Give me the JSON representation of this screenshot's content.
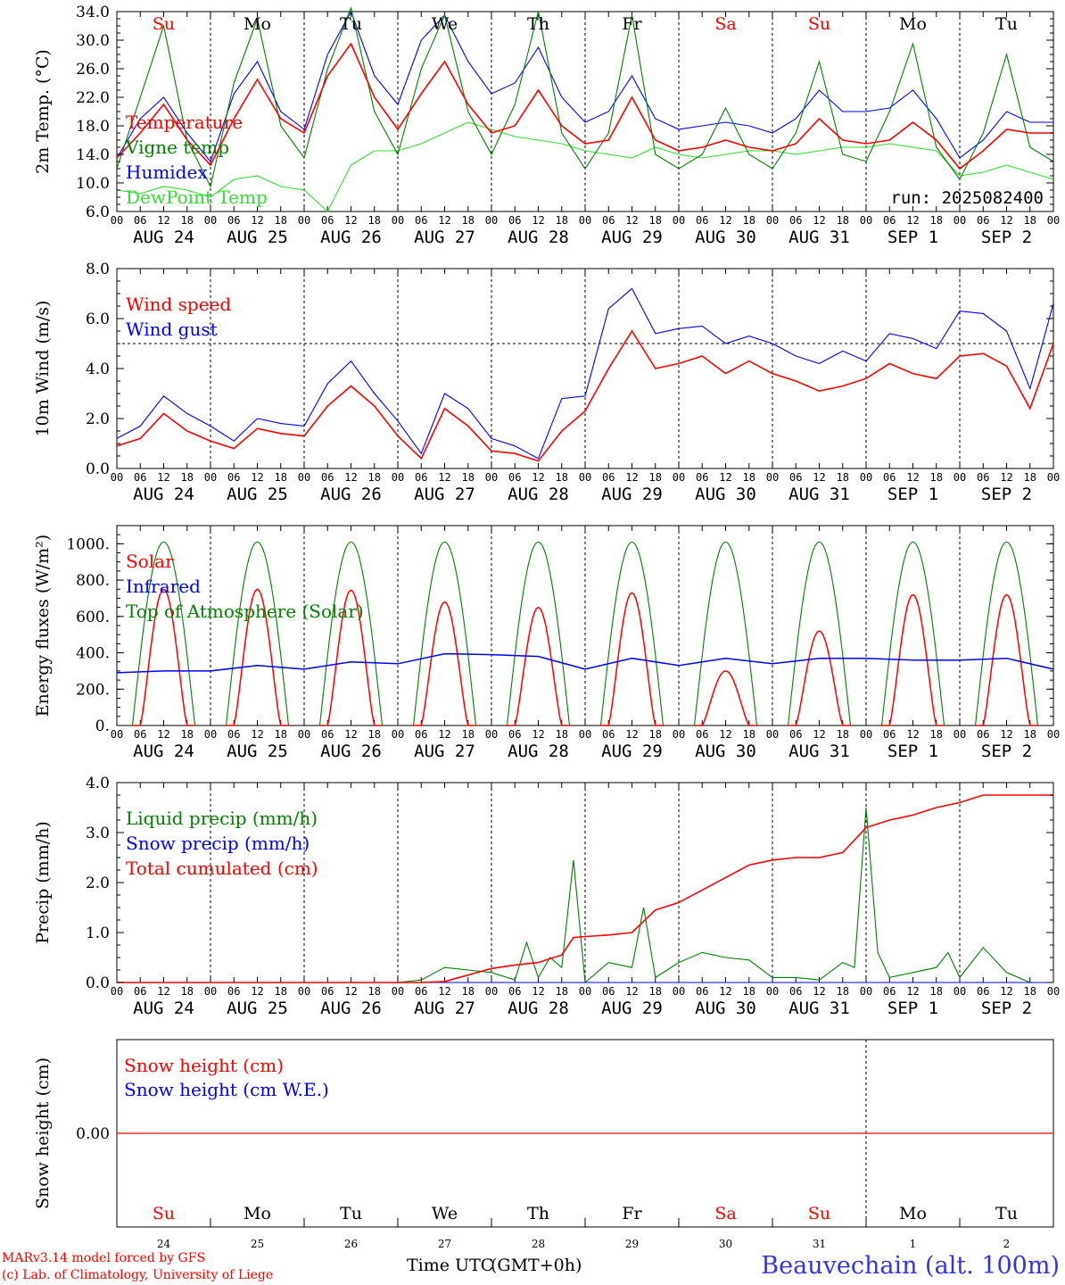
{
  "footer": {
    "credit_line1": "MARv3.14 model forced by GFS",
    "credit_line2": "(c) Lab. of Climatology, University of Liege",
    "time_label_a": "Time UTC",
    "time_label_b": "(GMT+0h)",
    "station": "Beauvechain (alt. 100m)"
  },
  "days": {
    "weekday": [
      "Su",
      "Mo",
      "Tu",
      "We",
      "Th",
      "Fr",
      "Sa",
      "Su",
      "Mo",
      "Tu"
    ],
    "weekend_flags": [
      true,
      false,
      false,
      false,
      false,
      false,
      true,
      true,
      false,
      false
    ],
    "date_labels": [
      "AUG 24",
      "AUG 25",
      "AUG 26",
      "AUG 27",
      "AUG 28",
      "AUG 29",
      "AUG 30",
      "AUG 31",
      "SEP  1",
      "SEP  2"
    ],
    "day_numbers": [
      "24",
      "25",
      "26",
      "27",
      "28",
      "29",
      "30",
      "31",
      "1",
      "2"
    ],
    "hour_ticks": [
      "00",
      "06",
      "12",
      "18"
    ],
    "final_tick": "00"
  },
  "colors": {
    "red": "#ff0000",
    "green": "#008000",
    "blue": "#0000ff",
    "lightgreen": "#33dd33",
    "weekend": "#ff0000",
    "weekday": "#000000"
  },
  "chart_data": [
    {
      "type": "line",
      "ylabel": "2m Temp. (°C)",
      "ylim": [
        6,
        34
      ],
      "yticks": [
        "6.0",
        "10.0",
        "14.0",
        "18.0",
        "22.0",
        "26.0",
        "30.0",
        "34.0"
      ],
      "run_label": "run: 2025082400",
      "x_unit": "hours since 2025-08-24 00 UTC",
      "series": [
        {
          "name": "Temperature",
          "color": "#ff0000",
          "x": [
            0,
            6,
            12,
            18,
            24,
            30,
            36,
            42,
            48,
            54,
            60,
            66,
            72,
            78,
            84,
            90,
            96,
            102,
            108,
            114,
            120,
            126,
            132,
            138,
            144,
            150,
            156,
            162,
            168,
            174,
            180,
            186,
            192,
            198,
            204,
            210,
            216,
            222,
            228,
            234,
            240
          ],
          "values": [
            13.5,
            17,
            21,
            16,
            12.5,
            19,
            24.5,
            19,
            17,
            25,
            29.5,
            22,
            17.5,
            22.5,
            27,
            21,
            17,
            18,
            23,
            18,
            15.5,
            16,
            22,
            16,
            14.5,
            15,
            16,
            15,
            14.5,
            15.5,
            19,
            16,
            15.5,
            16,
            18.5,
            16,
            12,
            14.5,
            17.5,
            17,
            17
          ]
        },
        {
          "name": "Vigne temp",
          "color": "#008000",
          "x": [
            0,
            6,
            12,
            18,
            24,
            30,
            36,
            42,
            48,
            54,
            60,
            66,
            72,
            78,
            84,
            90,
            96,
            102,
            108,
            114,
            120,
            126,
            132,
            138,
            144,
            150,
            156,
            162,
            168,
            174,
            180,
            186,
            192,
            198,
            204,
            210,
            216,
            222,
            228,
            234,
            240
          ],
          "values": [
            12,
            22,
            32,
            16,
            9.5,
            24,
            33,
            18,
            13.5,
            26,
            34.5,
            20,
            14,
            26,
            33.5,
            20,
            14,
            21,
            34,
            17,
            12,
            17,
            33.5,
            14,
            12,
            14,
            20.5,
            14,
            12,
            17,
            27,
            14,
            13,
            20,
            29.5,
            15,
            10.5,
            17,
            28,
            15,
            13
          ]
        },
        {
          "name": "Humidex",
          "color": "#0000ff",
          "x": [
            0,
            6,
            12,
            18,
            24,
            30,
            36,
            42,
            48,
            54,
            60,
            66,
            72,
            78,
            84,
            90,
            96,
            102,
            108,
            114,
            120,
            126,
            132,
            138,
            144,
            150,
            156,
            162,
            168,
            174,
            180,
            186,
            192,
            198,
            204,
            210,
            216,
            222,
            228,
            234,
            240
          ],
          "values": [
            13.5,
            19,
            22,
            17,
            13,
            22.5,
            27,
            20,
            17.5,
            28,
            34,
            25,
            21,
            30,
            33.5,
            27,
            22.5,
            24,
            29,
            22,
            18.5,
            20,
            25,
            19,
            17.5,
            18,
            18.5,
            18,
            17,
            19,
            23,
            20,
            20,
            20.5,
            23,
            19,
            13.5,
            16,
            20,
            18.5,
            18.5
          ]
        },
        {
          "name": "DewPoint Temp",
          "color": "#33dd33",
          "x": [
            0,
            6,
            12,
            18,
            24,
            30,
            36,
            42,
            48,
            54,
            60,
            66,
            72,
            78,
            84,
            90,
            96,
            102,
            108,
            114,
            120,
            126,
            132,
            138,
            144,
            150,
            156,
            162,
            168,
            174,
            180,
            186,
            192,
            198,
            204,
            210,
            216,
            222,
            228,
            234,
            240
          ],
          "values": [
            9,
            8.5,
            9.5,
            9,
            8,
            10.5,
            11,
            9.5,
            9,
            6,
            12.5,
            14.5,
            14.5,
            15.5,
            17,
            18.5,
            17.5,
            16.5,
            16,
            15.5,
            14.5,
            14,
            13.5,
            15,
            14,
            13.5,
            14,
            14.5,
            14.5,
            14,
            14.5,
            15,
            15,
            15.5,
            15,
            14.5,
            11,
            11.5,
            12.5,
            11.5,
            10.5
          ]
        }
      ]
    },
    {
      "type": "line",
      "ylabel": "10m Wind (m/s)",
      "ylim": [
        0,
        8
      ],
      "yticks": [
        "0.0",
        "2.0",
        "4.0",
        "6.0",
        "8.0"
      ],
      "reference_line": 5,
      "x_unit": "hours since 2025-08-24 00 UTC",
      "series": [
        {
          "name": "Wind speed",
          "color": "#ff0000",
          "x": [
            0,
            6,
            12,
            18,
            24,
            30,
            36,
            42,
            48,
            54,
            60,
            66,
            72,
            78,
            84,
            90,
            96,
            102,
            108,
            114,
            120,
            126,
            132,
            138,
            144,
            150,
            156,
            162,
            168,
            174,
            180,
            186,
            192,
            198,
            204,
            210,
            216,
            222,
            228,
            234,
            240
          ],
          "values": [
            0.9,
            1.2,
            2.2,
            1.5,
            1.1,
            0.8,
            1.6,
            1.4,
            1.3,
            2.5,
            3.3,
            2.5,
            1.3,
            0.4,
            2.4,
            1.7,
            0.7,
            0.6,
            0.3,
            1.5,
            2.3,
            4.0,
            5.5,
            4.0,
            4.2,
            4.5,
            3.8,
            4.3,
            3.8,
            3.5,
            3.1,
            3.3,
            3.6,
            4.2,
            3.8,
            3.6,
            4.5,
            4.6,
            4.1,
            2.4,
            5.0
          ]
        },
        {
          "name": "Wind gust",
          "color": "#0000ff",
          "x": [
            0,
            6,
            12,
            18,
            24,
            30,
            36,
            42,
            48,
            54,
            60,
            66,
            72,
            78,
            84,
            90,
            96,
            102,
            108,
            114,
            120,
            126,
            132,
            138,
            144,
            150,
            156,
            162,
            168,
            174,
            180,
            186,
            192,
            198,
            204,
            210,
            216,
            222,
            228,
            234,
            240
          ],
          "values": [
            1.2,
            1.7,
            2.9,
            2.2,
            1.7,
            1.1,
            2.0,
            1.8,
            1.7,
            3.4,
            4.3,
            3.0,
            1.9,
            0.6,
            3.0,
            2.4,
            1.2,
            0.9,
            0.4,
            2.8,
            2.9,
            6.4,
            7.2,
            5.4,
            5.6,
            5.7,
            5.0,
            5.3,
            5.0,
            4.5,
            4.2,
            4.7,
            4.3,
            5.4,
            5.2,
            4.8,
            6.3,
            6.2,
            5.5,
            3.2,
            6.6
          ]
        }
      ]
    },
    {
      "type": "line",
      "ylabel": "Energy fluxes (W/m²)",
      "ylim": [
        0,
        1100
      ],
      "yticks": [
        "0.",
        "200.",
        "400.",
        "600.",
        "800.",
        "1000."
      ],
      "x_unit": "hours since 2025-08-24 00 UTC",
      "toa_peak": 1010,
      "series": [
        {
          "name": "Solar",
          "color": "#ff0000",
          "peaks": [
            750,
            750,
            745,
            680,
            650,
            730,
            300,
            520,
            720,
            720
          ]
        },
        {
          "name": "Infrared",
          "color": "#0000ff",
          "x": [
            0,
            12,
            24,
            36,
            48,
            60,
            72,
            84,
            96,
            108,
            120,
            132,
            144,
            156,
            168,
            180,
            192,
            204,
            216,
            228,
            240
          ],
          "values": [
            290,
            300,
            300,
            330,
            310,
            350,
            340,
            395,
            390,
            380,
            310,
            370,
            330,
            370,
            340,
            370,
            370,
            360,
            360,
            370,
            310
          ]
        },
        {
          "name": "Top of Atmosphere (Solar)",
          "color": "#008000"
        }
      ]
    },
    {
      "type": "line",
      "ylabel": "Precip (mm/h)",
      "ylim": [
        0,
        4
      ],
      "yticks": [
        "0.0",
        "1.0",
        "2.0",
        "3.0",
        "4.0"
      ],
      "x_unit": "hours since 2025-08-24 00 UTC",
      "series": [
        {
          "name": "Liquid precip (mm/h)",
          "color": "#008000",
          "x": [
            0,
            72,
            78,
            84,
            90,
            96,
            102,
            105,
            108,
            111,
            114,
            117,
            120,
            126,
            132,
            135,
            138,
            144,
            150,
            156,
            162,
            168,
            174,
            180,
            186,
            189,
            192,
            195,
            198,
            204,
            210,
            213,
            216,
            222,
            228,
            234,
            240
          ],
          "values": [
            0,
            0,
            0.05,
            0.3,
            0.25,
            0.2,
            0.05,
            0.8,
            0.1,
            0.5,
            0.3,
            2.45,
            0,
            0.4,
            0.3,
            1.5,
            0.1,
            0.4,
            0.6,
            0.5,
            0.45,
            0.1,
            0.1,
            0.05,
            0.4,
            0.3,
            3.5,
            0.6,
            0.1,
            0.2,
            0.3,
            0.6,
            0.1,
            0.7,
            0.2,
            0,
            0
          ]
        },
        {
          "name": "Snow precip (mm/h)",
          "color": "#0000ff",
          "x": [
            0,
            240
          ],
          "values": [
            0,
            0
          ]
        },
        {
          "name": "Total cumulated (cm)",
          "color": "#ff0000",
          "x": [
            0,
            72,
            78,
            84,
            90,
            96,
            102,
            108,
            114,
            117,
            120,
            126,
            132,
            138,
            144,
            150,
            156,
            162,
            168,
            174,
            180,
            186,
            192,
            198,
            204,
            210,
            216,
            222,
            228,
            234,
            240
          ],
          "values": [
            0,
            0,
            0,
            0.02,
            0.15,
            0.28,
            0.35,
            0.4,
            0.55,
            0.9,
            0.92,
            0.95,
            1.0,
            1.45,
            1.6,
            1.85,
            2.1,
            2.35,
            2.45,
            2.5,
            2.5,
            2.6,
            3.1,
            3.25,
            3.35,
            3.5,
            3.6,
            3.75,
            3.75,
            3.75,
            3.75
          ]
        }
      ]
    },
    {
      "type": "line",
      "ylabel": "Snow height (cm)",
      "ytick": "0.00",
      "x_unit": "hours since 2025-08-24 00 UTC",
      "series": [
        {
          "name": "Snow height (cm)",
          "color": "#ff0000",
          "x": [
            0,
            240
          ],
          "values": [
            0,
            0
          ]
        },
        {
          "name": "Snow height (cm W.E.)",
          "color": "#0000ff",
          "x": [
            0,
            240
          ],
          "values": [
            0,
            0
          ]
        }
      ]
    }
  ]
}
